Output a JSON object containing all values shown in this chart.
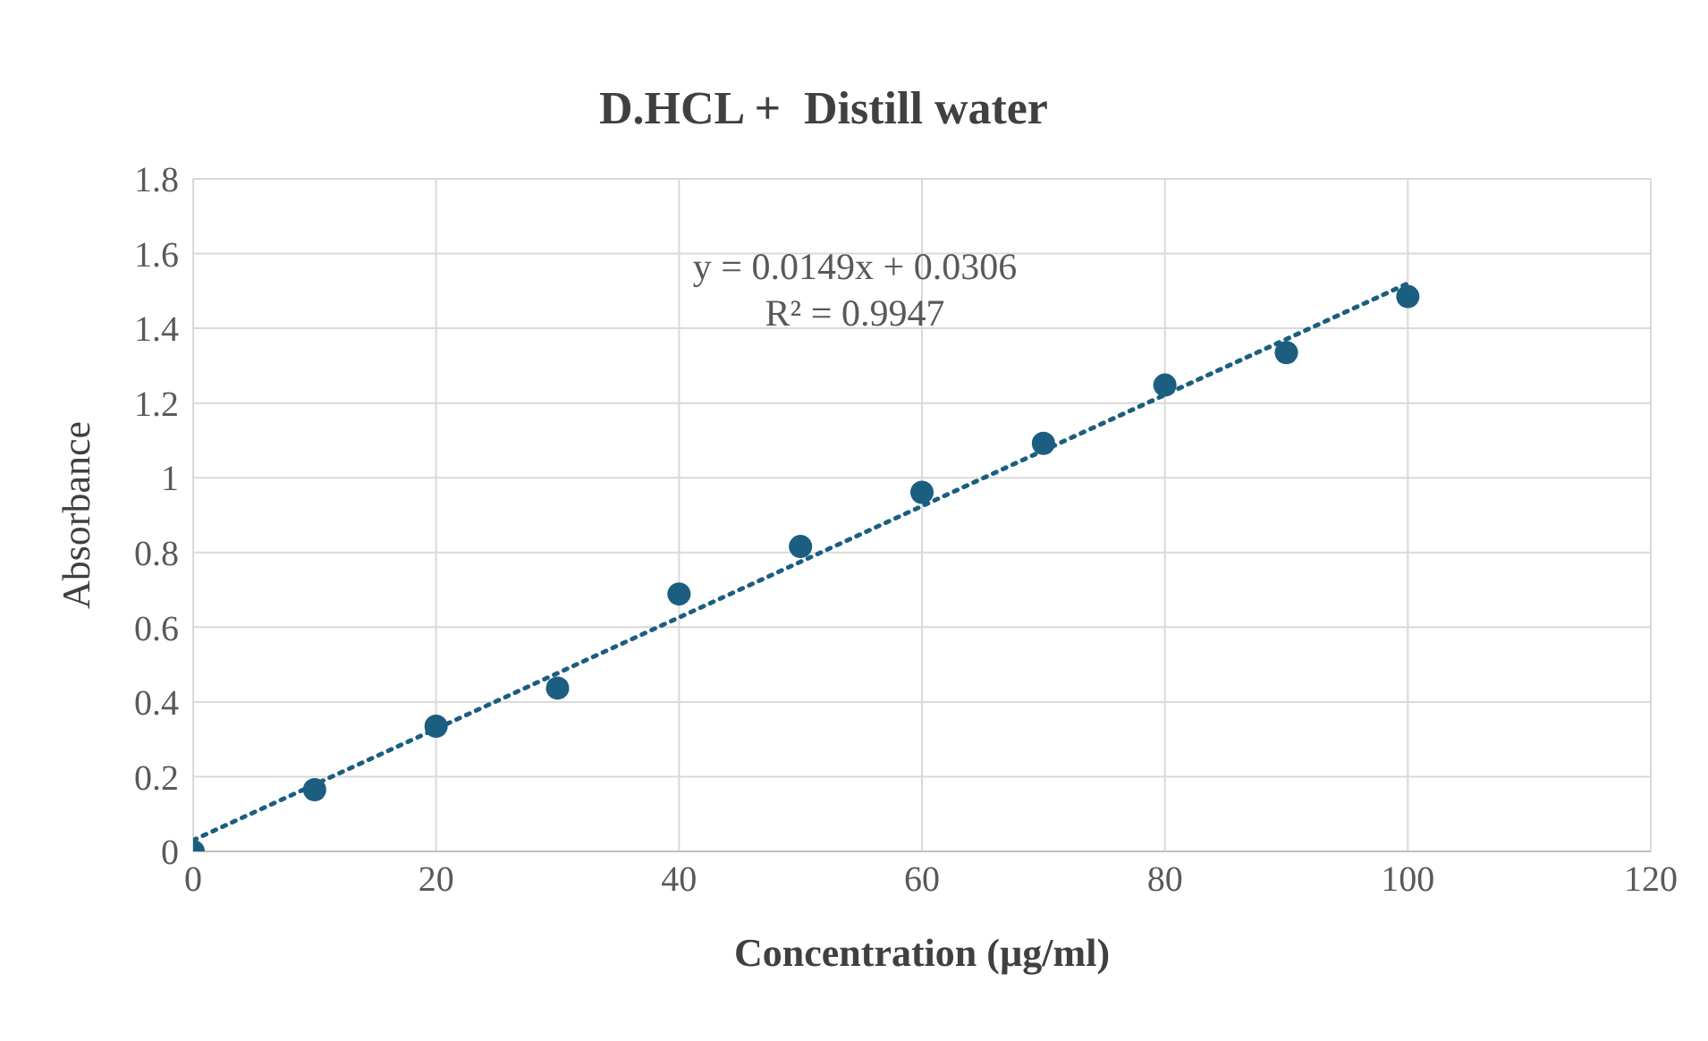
{
  "chart_data": {
    "type": "scatter",
    "title": "D.HCL +  Distill water",
    "xlabel": "Concentration (µg/ml)",
    "ylabel": "Absorbance",
    "x": [
      0,
      10,
      20,
      30,
      40,
      50,
      60,
      70,
      80,
      90,
      100
    ],
    "series": [
      {
        "color": "#1b5e80",
        "values": [
          0,
          0.165,
          0.335,
          0.437,
          0.689,
          0.816,
          0.961,
          1.092,
          1.248,
          1.335,
          1.485
        ]
      },
      {
        "type": "line",
        "color": "#1b5e80",
        "line_style": "dotted",
        "marker": "none",
        "x": [
          0,
          100
        ],
        "values": [
          0.03,
          1.52
        ]
      }
    ],
    "marker": "circle",
    "xlim": [
      0,
      120
    ],
    "xticks": [
      0,
      20,
      40,
      60,
      80,
      100,
      120
    ],
    "ylim": [
      0,
      1.8
    ],
    "yticks": [
      0,
      0.2,
      0.4,
      0.6,
      0.8,
      1,
      1.2,
      1.4,
      1.6,
      1.8
    ],
    "grid": true,
    "legend": false,
    "annotations": [
      "y = 0.0149x + 0.0306",
      "R² = 0.9947"
    ]
  }
}
